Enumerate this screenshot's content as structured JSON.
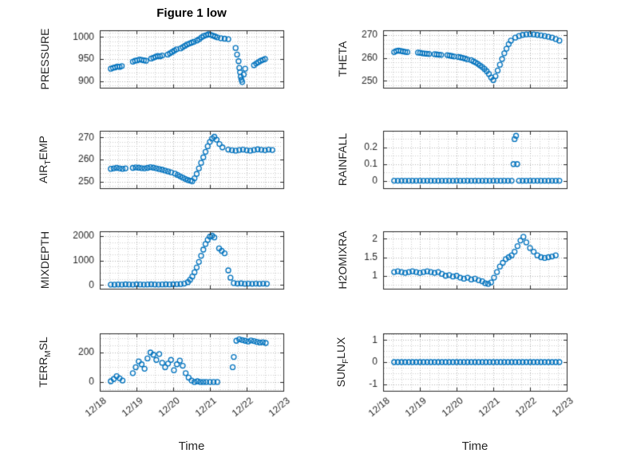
{
  "title": "Figure 1 low",
  "xlabel": "Time",
  "colors": {
    "marker": "#0072BD",
    "axis": "#262626",
    "text": "#262626",
    "grid_minor": "#cccccc",
    "grid_major": "#b0b0b0",
    "background": "#ffffff"
  },
  "x_axis": {
    "lim": [
      0,
      5
    ],
    "ticks": [
      0,
      1,
      2,
      3,
      4,
      5
    ],
    "labels": [
      "12/18",
      "12/19",
      "12/20",
      "12/21",
      "12/22",
      "12/23"
    ],
    "minor_step": 0.25
  },
  "chart_data": [
    {
      "name": "pressure",
      "type": "scatter",
      "marker": "open-circle",
      "ylabel_parts": [
        {
          "text": "PRESSURE",
          "sub": false
        }
      ],
      "ylim": [
        885,
        1015
      ],
      "yticks": [
        900,
        950,
        1000
      ],
      "y_minor_step": 10,
      "x": [
        0.3,
        0.36,
        0.42,
        0.48,
        0.54,
        0.6,
        0.9,
        0.96,
        1.02,
        1.08,
        1.14,
        1.2,
        1.26,
        1.4,
        1.46,
        1.52,
        1.58,
        1.64,
        1.7,
        1.85,
        1.91,
        1.97,
        2.03,
        2.09,
        2.2,
        2.26,
        2.32,
        2.38,
        2.44,
        2.5,
        2.56,
        2.65,
        2.71,
        2.77,
        2.83,
        2.9,
        2.96,
        3.02,
        3.08,
        3.14,
        3.2,
        3.3,
        3.4,
        3.5,
        3.7,
        3.74,
        3.78,
        3.8,
        3.82,
        3.84,
        3.86,
        3.88,
        3.92,
        3.96,
        4.2,
        4.26,
        4.32,
        4.38,
        4.44,
        4.5
      ],
      "y": [
        928,
        930,
        931,
        933,
        932,
        934,
        944,
        946,
        947,
        949,
        948,
        947,
        946,
        951,
        953,
        955,
        957,
        956,
        958,
        960,
        963,
        966,
        969,
        972,
        974,
        977,
        980,
        983,
        985,
        987,
        989,
        992,
        995,
        999,
        1002,
        1004,
        1006,
        1005,
        1003,
        1001,
        999,
        997,
        996,
        995,
        975,
        960,
        945,
        930,
        920,
        910,
        903,
        898,
        915,
        928,
        936,
        940,
        943,
        946,
        948,
        950
      ]
    },
    {
      "name": "theta",
      "type": "scatter",
      "marker": "open-circle",
      "ylabel_parts": [
        {
          "text": "THETA",
          "sub": false
        }
      ],
      "ylim": [
        247,
        272
      ],
      "yticks": [
        250,
        260,
        270
      ],
      "y_minor_step": 2,
      "x": [
        0.3,
        0.36,
        0.42,
        0.48,
        0.54,
        0.6,
        0.66,
        0.95,
        1.01,
        1.07,
        1.13,
        1.19,
        1.25,
        1.4,
        1.46,
        1.52,
        1.58,
        1.75,
        1.81,
        1.87,
        1.93,
        2.05,
        2.11,
        2.17,
        2.23,
        2.29,
        2.4,
        2.46,
        2.52,
        2.58,
        2.64,
        2.7,
        2.76,
        2.82,
        2.88,
        2.94,
        3.0,
        3.06,
        3.12,
        3.18,
        3.24,
        3.3,
        3.36,
        3.42,
        3.48,
        3.6,
        3.7,
        3.8,
        3.9,
        4.0,
        4.1,
        4.2,
        4.3,
        4.4,
        4.5,
        4.6,
        4.7,
        4.8
      ],
      "y": [
        262.5,
        263.0,
        263.2,
        263.0,
        262.8,
        262.6,
        262.5,
        262.3,
        262.2,
        262.0,
        261.9,
        261.8,
        261.7,
        261.6,
        261.5,
        261.4,
        261.3,
        261.2,
        261.0,
        260.8,
        260.6,
        260.4,
        260.2,
        260.0,
        259.7,
        259.4,
        259.0,
        258.5,
        258.0,
        257.4,
        256.7,
        256.0,
        255.2,
        254.2,
        253.0,
        251.5,
        250.3,
        252.0,
        254.5,
        257.0,
        259.5,
        262.0,
        264.0,
        266.0,
        267.5,
        268.8,
        269.5,
        270.0,
        270.2,
        270.3,
        270.2,
        270.0,
        269.8,
        269.5,
        269.2,
        268.8,
        268.2,
        267.5
      ]
    },
    {
      "name": "air-temp",
      "type": "scatter",
      "marker": "open-circle",
      "ylabel_parts": [
        {
          "text": "AIR",
          "sub": false
        },
        {
          "text": "T",
          "sub": true
        },
        {
          "text": "EMP",
          "sub": false
        }
      ],
      "ylim": [
        247,
        273
      ],
      "yticks": [
        250,
        260,
        270
      ],
      "y_minor_step": 2,
      "x": [
        0.3,
        0.38,
        0.46,
        0.54,
        0.62,
        0.7,
        0.9,
        0.98,
        1.06,
        1.14,
        1.22,
        1.3,
        1.38,
        1.46,
        1.54,
        1.62,
        1.7,
        1.78,
        1.86,
        1.94,
        2.05,
        2.12,
        2.19,
        2.26,
        2.33,
        2.4,
        2.47,
        2.52,
        2.58,
        2.64,
        2.7,
        2.76,
        2.82,
        2.88,
        2.94,
        3.0,
        3.06,
        3.12,
        3.18,
        3.26,
        3.34,
        3.5,
        3.6,
        3.7,
        3.8,
        3.9,
        4.0,
        4.1,
        4.2,
        4.3,
        4.4,
        4.5,
        4.6,
        4.7
      ],
      "y": [
        255.8,
        256.0,
        256.2,
        256.0,
        255.8,
        256.0,
        256.2,
        256.4,
        256.3,
        256.1,
        256.0,
        256.2,
        256.5,
        256.3,
        256.0,
        255.7,
        255.4,
        255.0,
        254.6,
        254.2,
        253.6,
        253.0,
        252.4,
        251.8,
        251.2,
        250.7,
        250.4,
        250.2,
        251.5,
        253.5,
        256.0,
        258.5,
        261.0,
        263.5,
        266.0,
        268.0,
        269.5,
        270.3,
        269.0,
        267.0,
        265.5,
        264.5,
        264.2,
        264.0,
        264.3,
        264.5,
        264.2,
        264.0,
        264.3,
        264.6,
        264.4,
        264.2,
        264.5,
        264.3
      ]
    },
    {
      "name": "rainfall",
      "type": "scatter",
      "marker": "open-circle",
      "ylabel_parts": [
        {
          "text": "RAINFALL",
          "sub": false
        }
      ],
      "ylim": [
        -0.045,
        0.3
      ],
      "yticks": [
        0,
        0.1,
        0.2
      ],
      "y_minor_step": 0.05,
      "x": [
        0.3,
        0.4,
        0.5,
        0.6,
        0.7,
        0.8,
        0.9,
        1.0,
        1.1,
        1.2,
        1.3,
        1.4,
        1.5,
        1.6,
        1.7,
        1.8,
        1.9,
        2.0,
        2.1,
        2.2,
        2.3,
        2.4,
        2.5,
        2.6,
        2.7,
        2.8,
        2.9,
        3.0,
        3.1,
        3.2,
        3.3,
        3.4,
        3.5,
        3.7,
        3.8,
        3.9,
        4.0,
        4.1,
        4.2,
        4.3,
        4.4,
        4.5,
        4.6,
        4.7,
        4.8,
        3.55,
        3.58,
        3.62,
        3.65
      ],
      "y": [
        0,
        0,
        0,
        0,
        0,
        0,
        0,
        0,
        0,
        0,
        0,
        0,
        0,
        0,
        0,
        0,
        0,
        0,
        0,
        0,
        0,
        0,
        0,
        0,
        0,
        0,
        0,
        0,
        0,
        0,
        0,
        0,
        0,
        0,
        0,
        0,
        0,
        0,
        0,
        0,
        0,
        0,
        0,
        0,
        0,
        0.1,
        0.25,
        0.27,
        0.1
      ]
    },
    {
      "name": "mixdepth",
      "type": "scatter",
      "marker": "open-circle",
      "ylabel_parts": [
        {
          "text": "MIXDEPTH",
          "sub": false
        }
      ],
      "ylim": [
        -150,
        2200
      ],
      "yticks": [
        0,
        1000,
        2000
      ],
      "y_minor_step": 250,
      "x": [
        0.3,
        0.4,
        0.5,
        0.6,
        0.7,
        0.8,
        0.9,
        1.0,
        1.1,
        1.2,
        1.3,
        1.4,
        1.5,
        1.6,
        1.7,
        1.8,
        1.9,
        2.0,
        2.1,
        2.2,
        2.3,
        2.4,
        2.46,
        2.52,
        2.58,
        2.64,
        2.7,
        2.76,
        2.82,
        2.88,
        2.94,
        3.0,
        3.06,
        3.12,
        3.25,
        3.32,
        3.4,
        3.5,
        3.56,
        3.65,
        3.75,
        3.85,
        3.95,
        4.05,
        4.15,
        4.25,
        4.35,
        4.45,
        4.55
      ],
      "y": [
        20,
        15,
        25,
        20,
        30,
        25,
        20,
        30,
        25,
        20,
        25,
        30,
        25,
        20,
        25,
        30,
        25,
        30,
        35,
        40,
        60,
        120,
        220,
        350,
        520,
        720,
        950,
        1200,
        1450,
        1680,
        1850,
        1980,
        2020,
        1950,
        1500,
        1400,
        1300,
        600,
        300,
        80,
        60,
        70,
        50,
        60,
        50,
        60,
        50,
        60,
        50
      ]
    },
    {
      "name": "h2omixra",
      "type": "scatter",
      "marker": "open-circle",
      "ylabel_parts": [
        {
          "text": "H2OMIXRA",
          "sub": false
        }
      ],
      "ylim": [
        0.65,
        2.2
      ],
      "yticks": [
        1,
        1.5,
        2
      ],
      "y_minor_step": 0.25,
      "x": [
        0.3,
        0.4,
        0.5,
        0.6,
        0.7,
        0.8,
        0.9,
        1.0,
        1.1,
        1.2,
        1.3,
        1.4,
        1.5,
        1.6,
        1.7,
        1.8,
        1.9,
        2.0,
        2.1,
        2.2,
        2.3,
        2.4,
        2.5,
        2.6,
        2.7,
        2.78,
        2.86,
        2.94,
        3.02,
        3.1,
        3.18,
        3.26,
        3.34,
        3.42,
        3.5,
        3.58,
        3.66,
        3.74,
        3.82,
        3.9,
        4.0,
        4.1,
        4.2,
        4.3,
        4.4,
        4.5,
        4.6,
        4.7
      ],
      "y": [
        1.1,
        1.12,
        1.1,
        1.08,
        1.1,
        1.12,
        1.1,
        1.08,
        1.1,
        1.12,
        1.1,
        1.08,
        1.1,
        1.05,
        1.0,
        1.02,
        0.98,
        1.0,
        0.95,
        0.92,
        0.95,
        0.9,
        0.92,
        0.88,
        0.85,
        0.8,
        0.78,
        0.82,
        0.95,
        1.1,
        1.25,
        1.35,
        1.45,
        1.5,
        1.55,
        1.65,
        1.8,
        1.95,
        2.05,
        1.9,
        1.75,
        1.65,
        1.55,
        1.5,
        1.48,
        1.5,
        1.52,
        1.55
      ]
    },
    {
      "name": "terr-msl",
      "type": "scatter",
      "marker": "open-circle",
      "ylabel_parts": [
        {
          "text": "TERR",
          "sub": false
        },
        {
          "text": "M",
          "sub": true
        },
        {
          "text": "SL",
          "sub": false
        }
      ],
      "ylim": [
        -60,
        330
      ],
      "yticks": [
        0,
        200
      ],
      "y_minor_step": 50,
      "x": [
        0.3,
        0.38,
        0.46,
        0.54,
        0.62,
        0.9,
        0.98,
        1.06,
        1.14,
        1.22,
        1.3,
        1.38,
        1.46,
        1.54,
        1.62,
        1.7,
        1.78,
        1.86,
        1.94,
        2.02,
        2.1,
        2.18,
        2.26,
        2.34,
        2.42,
        2.5,
        2.58,
        2.66,
        2.74,
        2.82,
        2.9,
        3.0,
        3.1,
        3.2,
        3.62,
        3.65,
        3.72,
        3.8,
        3.88,
        3.96,
        4.04,
        4.12,
        4.2,
        4.28,
        4.36,
        4.44,
        4.52
      ],
      "y": [
        5,
        20,
        40,
        25,
        10,
        60,
        100,
        140,
        120,
        90,
        160,
        200,
        185,
        150,
        190,
        130,
        100,
        125,
        150,
        80,
        120,
        145,
        110,
        60,
        30,
        10,
        0,
        5,
        0,
        0,
        0,
        0,
        0,
        0,
        100,
        170,
        280,
        290,
        285,
        280,
        275,
        282,
        278,
        272,
        268,
        270,
        265
      ]
    },
    {
      "name": "sun-flux",
      "type": "scatter",
      "marker": "open-circle",
      "ylabel_parts": [
        {
          "text": "SUN",
          "sub": false
        },
        {
          "text": "F",
          "sub": true
        },
        {
          "text": "LUX",
          "sub": false
        }
      ],
      "ylim": [
        -1.3,
        1.3
      ],
      "yticks": [
        -1,
        0,
        1
      ],
      "y_minor_step": 0.25,
      "x": [
        0.3,
        0.4,
        0.5,
        0.6,
        0.7,
        0.8,
        0.9,
        1.0,
        1.1,
        1.2,
        1.3,
        1.4,
        1.5,
        1.6,
        1.7,
        1.8,
        1.9,
        2.0,
        2.1,
        2.2,
        2.3,
        2.4,
        2.5,
        2.6,
        2.7,
        2.8,
        2.9,
        3.0,
        3.1,
        3.2,
        3.3,
        3.4,
        3.5,
        3.6,
        3.7,
        3.8,
        3.9,
        4.0,
        4.1,
        4.2,
        4.3,
        4.4,
        4.5,
        4.6,
        4.7,
        4.8
      ],
      "y": [
        0,
        0,
        0,
        0,
        0,
        0,
        0,
        0,
        0,
        0,
        0,
        0,
        0,
        0,
        0,
        0,
        0,
        0,
        0,
        0,
        0,
        0,
        0,
        0,
        0,
        0,
        0,
        0,
        0,
        0,
        0,
        0,
        0,
        0,
        0,
        0,
        0,
        0,
        0,
        0,
        0,
        0,
        0,
        0,
        0,
        0
      ]
    }
  ]
}
